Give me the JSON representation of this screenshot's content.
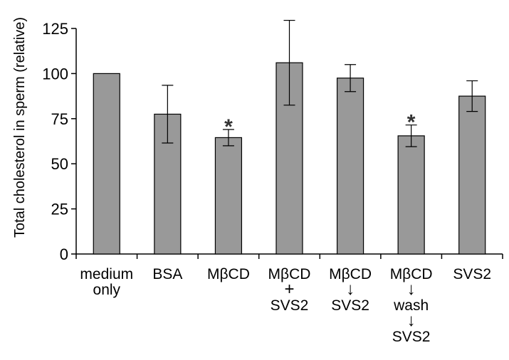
{
  "chart_data": {
    "type": "bar",
    "title": "",
    "xlabel": "",
    "ylabel": "Total cholesterol in sperm (relative)",
    "ylim": [
      0,
      125
    ],
    "yticks": [
      0,
      25,
      50,
      75,
      100,
      125
    ],
    "grid": false,
    "legend": "none",
    "bar_color": "#999999",
    "categories": [
      {
        "lines": [
          "medium",
          "only"
        ]
      },
      {
        "lines": [
          "BSA"
        ]
      },
      {
        "lines": [
          "MβCD"
        ]
      },
      {
        "lines": [
          "MβCD",
          "+",
          "SVS2"
        ]
      },
      {
        "lines": [
          "MβCD",
          "↓",
          "SVS2"
        ]
      },
      {
        "lines": [
          "MβCD",
          "↓",
          "wash",
          "↓",
          "SVS2"
        ]
      },
      {
        "lines": [
          "SVS2"
        ]
      }
    ],
    "values": [
      100,
      77.5,
      64.5,
      106,
      97.5,
      65.5,
      87.5
    ],
    "errors": [
      0,
      16,
      4.5,
      23.5,
      7.5,
      6,
      8.5
    ],
    "significance": [
      "",
      "",
      "*",
      "",
      "",
      "*",
      ""
    ]
  }
}
